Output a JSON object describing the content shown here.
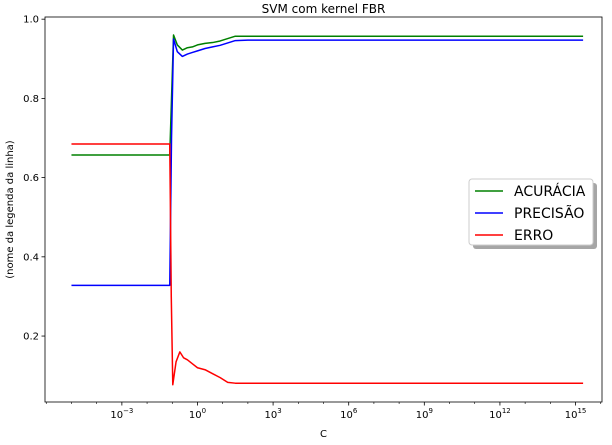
{
  "chart_data": {
    "type": "line",
    "title": "SVM com kernel FBR",
    "xlabel": "C",
    "ylabel": "(nome da legenda da linha)",
    "x_scale": "log",
    "x_ticks": [
      -3,
      0,
      3,
      6,
      9,
      12,
      15
    ],
    "x_tick_labels": [
      "10",
      "10",
      "10",
      "10",
      "10",
      "10",
      "10"
    ],
    "x_tick_exponents": [
      "−3",
      "0",
      "3",
      "6",
      "9",
      "12",
      "15"
    ],
    "x_range_log10": [
      -6.05,
      16.05
    ],
    "y_ticks": [
      0.2,
      0.4,
      0.6,
      0.8,
      1.0
    ],
    "y_tick_labels": [
      "0.2",
      "0.4",
      "0.6",
      "0.8",
      "1.0"
    ],
    "ylim": [
      0.0335,
      1.0055
    ],
    "legend_position": "right",
    "series": [
      {
        "name": "ACURÁCIA",
        "color": "#008000",
        "x_log10": [
          -5,
          -1.1,
          -1.03,
          -0.95,
          -0.8,
          -0.6,
          -0.4,
          -0.2,
          0,
          0.3,
          0.6,
          0.9,
          1.2,
          1.5,
          2,
          15.3
        ],
        "y": [
          0.657,
          0.657,
          0.8,
          0.96,
          0.935,
          0.922,
          0.928,
          0.93,
          0.935,
          0.939,
          0.941,
          0.945,
          0.951,
          0.957,
          0.957,
          0.957
        ]
      },
      {
        "name": "PRECISÃO",
        "color": "#0000ff",
        "x_log10": [
          -5,
          -1.1,
          -1.03,
          -0.95,
          -0.8,
          -0.6,
          -0.4,
          -0.2,
          0,
          0.3,
          0.6,
          0.9,
          1.2,
          1.5,
          2,
          15.3
        ],
        "y": [
          0.328,
          0.328,
          0.7,
          0.95,
          0.918,
          0.906,
          0.912,
          0.916,
          0.92,
          0.926,
          0.93,
          0.934,
          0.94,
          0.946,
          0.947,
          0.947
        ]
      },
      {
        "name": "ERRO",
        "color": "#ff0000",
        "x_log10": [
          -5,
          -1.1,
          -1.04,
          -0.98,
          -0.85,
          -0.7,
          -0.55,
          -0.4,
          -0.2,
          0,
          0.3,
          0.6,
          0.9,
          1.2,
          1.5,
          2,
          15.3
        ],
        "y": [
          0.685,
          0.685,
          0.3,
          0.077,
          0.135,
          0.16,
          0.145,
          0.14,
          0.13,
          0.12,
          0.115,
          0.105,
          0.095,
          0.083,
          0.081,
          0.081,
          0.081
        ]
      }
    ]
  }
}
